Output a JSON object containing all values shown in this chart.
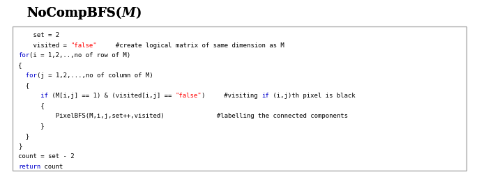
{
  "title_fontsize": 13,
  "code_fontsize": 6.5,
  "fig_bg": "#ffffff",
  "box_edge": "#aaaaaa",
  "code_lines": [
    [
      {
        "text": "    set = 2",
        "color": "#000000"
      }
    ],
    [
      {
        "text": "    visited = ",
        "color": "#000000"
      },
      {
        "text": "\"false\"",
        "color": "#ff0000"
      },
      {
        "text": "     #create logical matrix of same dimension as M",
        "color": "#000000"
      }
    ],
    [
      {
        "text": "for",
        "color": "#0000cc"
      },
      {
        "text": "(i = 1,2,..,no of row of M)",
        "color": "#000000"
      }
    ],
    [
      {
        "text": "{",
        "color": "#000000"
      }
    ],
    [
      {
        "text": "  for",
        "color": "#0000cc"
      },
      {
        "text": "(j = 1,2,...,no of column of M)",
        "color": "#000000"
      }
    ],
    [
      {
        "text": "  {",
        "color": "#000000"
      }
    ],
    [
      {
        "text": "      if",
        "color": "#0000cc"
      },
      {
        "text": " (M[i,j] == 1) & (visited[i,j] == ",
        "color": "#000000"
      },
      {
        "text": "\"false\"",
        "color": "#ff0000"
      },
      {
        "text": ")     #visiting ",
        "color": "#000000"
      },
      {
        "text": "if",
        "color": "#0000cc"
      },
      {
        "text": " (i,j)th pixel is black",
        "color": "#000000"
      }
    ],
    [
      {
        "text": "      {",
        "color": "#000000"
      }
    ],
    [
      {
        "text": "          PixelBFS(M,i,j,set++,visited)              #labelling the connected components",
        "color": "#000000"
      }
    ],
    [
      {
        "text": "      }",
        "color": "#000000"
      }
    ],
    [
      {
        "text": "  }",
        "color": "#000000"
      }
    ],
    [
      {
        "text": "}",
        "color": "#000000"
      }
    ],
    [
      {
        "text": "count = set - 2",
        "color": "#000000"
      }
    ],
    [
      {
        "text": "return",
        "color": "#0000cc"
      },
      {
        "text": " count",
        "color": "#000000"
      }
    ]
  ]
}
